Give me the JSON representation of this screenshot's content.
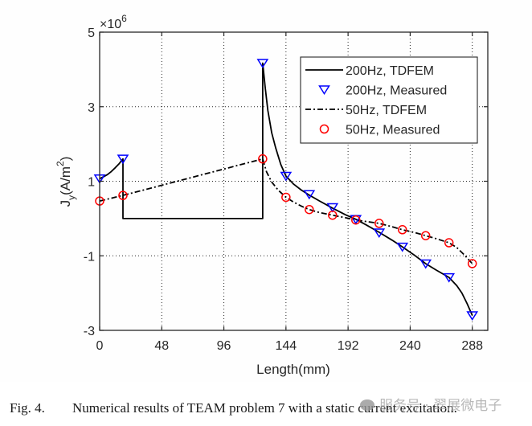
{
  "chart_data": {
    "type": "line",
    "title": "",
    "xlabel": "Length(mm)",
    "ylabel_main": "J",
    "ylabel_sub": "y",
    "ylabel_unit_pre": "(A/m",
    "ylabel_unit_sup": "2",
    "ylabel_unit_post": ")",
    "exponent_label": "×10",
    "exponent_power": "6",
    "xlim": [
      0,
      300
    ],
    "ylim": [
      -3,
      5
    ],
    "xticks": [
      0,
      48,
      96,
      144,
      192,
      240,
      288
    ],
    "xtick_labels": [
      "0",
      "48",
      "96",
      "144",
      "192",
      "240",
      "288"
    ],
    "yticks": [
      -3,
      -1,
      1,
      3,
      5
    ],
    "ytick_labels": [
      "-3",
      "-1",
      "1",
      "3",
      "5"
    ],
    "grid": true,
    "legend_position": "top-right",
    "series": [
      {
        "name": "200Hz, TDFEM",
        "style": "solid",
        "color": "#000000",
        "x": [
          0,
          3,
          6,
          9,
          12,
          15,
          18,
          18,
          126,
          126,
          128,
          130,
          133,
          136,
          140,
          144,
          150,
          156,
          162,
          170,
          180,
          190,
          198,
          206,
          216,
          226,
          234,
          244,
          252,
          260,
          270,
          276,
          280,
          284,
          288
        ],
        "y": [
          1.07,
          1.12,
          1.18,
          1.26,
          1.36,
          1.47,
          1.6,
          0,
          0,
          4.17,
          3.5,
          2.9,
          2.3,
          1.9,
          1.45,
          1.14,
          0.92,
          0.76,
          0.63,
          0.47,
          0.28,
          0.1,
          -0.02,
          -0.17,
          -0.37,
          -0.58,
          -0.76,
          -1.0,
          -1.21,
          -1.38,
          -1.58,
          -1.8,
          -2.0,
          -2.28,
          -2.6
        ]
      },
      {
        "name": "200Hz, Measured",
        "style": "marker",
        "marker": "triangle-down",
        "color": "#0000ff",
        "x": [
          0,
          18,
          126,
          144,
          162,
          180,
          198,
          216,
          234,
          252,
          270,
          288
        ],
        "y": [
          1.07,
          1.6,
          4.17,
          1.14,
          0.65,
          0.3,
          -0.02,
          -0.38,
          -0.76,
          -1.21,
          -1.58,
          -2.6
        ]
      },
      {
        "name": "50Hz, TDFEM",
        "style": "dashdot",
        "color": "#000000",
        "x": [
          0,
          6,
          12,
          18,
          126,
          129,
          133,
          138,
          144,
          150,
          156,
          162,
          170,
          180,
          190,
          198,
          206,
          216,
          226,
          234,
          244,
          252,
          260,
          270,
          276,
          282,
          288
        ],
        "y": [
          0.47,
          0.52,
          0.57,
          0.62,
          1.6,
          1.25,
          0.98,
          0.76,
          0.57,
          0.44,
          0.33,
          0.24,
          0.16,
          0.09,
          0.02,
          -0.04,
          -0.08,
          -0.13,
          -0.22,
          -0.3,
          -0.38,
          -0.46,
          -0.54,
          -0.65,
          -0.78,
          -0.98,
          -1.21
        ]
      },
      {
        "name": "50Hz, Measured",
        "style": "marker",
        "marker": "circle",
        "color": "#ff0000",
        "x": [
          0,
          18,
          126,
          144,
          162,
          180,
          198,
          216,
          234,
          252,
          270,
          288
        ],
        "y": [
          0.47,
          0.62,
          1.6,
          0.57,
          0.24,
          0.09,
          -0.04,
          -0.13,
          -0.3,
          -0.46,
          -0.65,
          -1.21
        ]
      }
    ]
  },
  "caption": {
    "fig_num": "Fig. 4.",
    "text": "Numerical results of TEAM problem 7 with a static current excitation."
  },
  "watermark": {
    "text": "服务号 · 翠展微电子"
  }
}
